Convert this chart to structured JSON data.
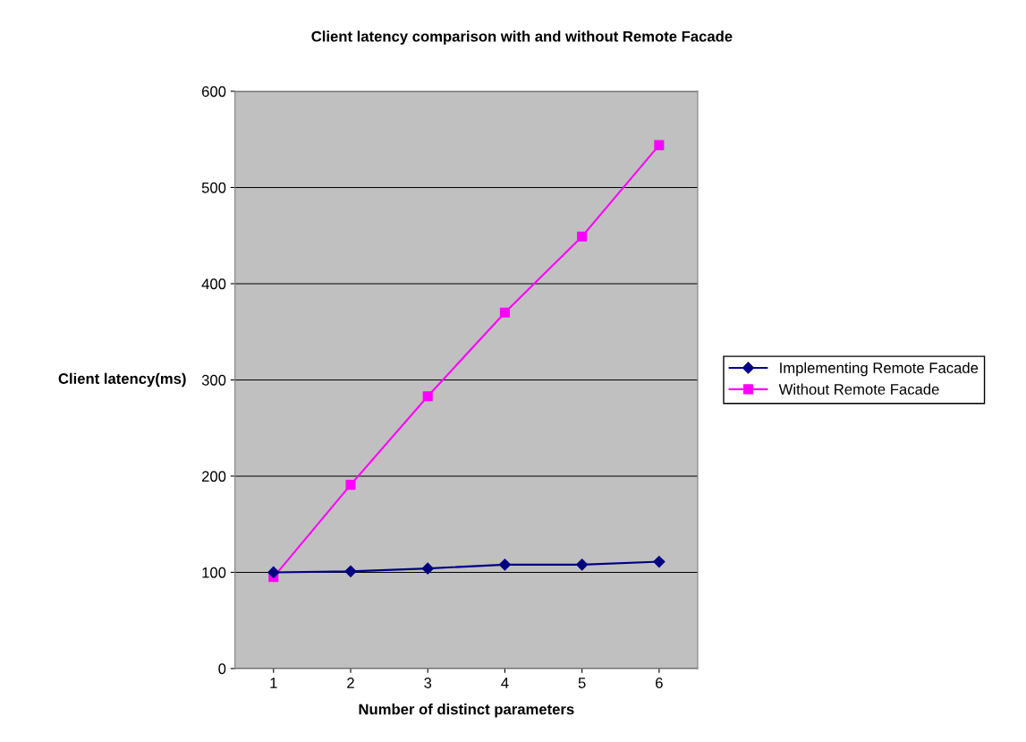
{
  "chart_data": {
    "type": "line",
    "title": "Client latency comparison with and without Remote Facade",
    "xlabel": "Number of distinct parameters",
    "ylabel": "Client latency(ms)",
    "categories": [
      "1",
      "2",
      "3",
      "4",
      "5",
      "6"
    ],
    "series": [
      {
        "name": "Implementing Remote Facade",
        "color": "#000080",
        "marker": "diamond",
        "values": [
          100,
          101,
          104,
          108,
          108,
          111
        ]
      },
      {
        "name": "Without Remote Facade",
        "color": "#ff00ff",
        "marker": "square",
        "values": [
          95,
          191,
          283,
          370,
          449,
          544
        ]
      }
    ],
    "ylim": [
      0,
      600
    ],
    "yticks": [
      0,
      100,
      200,
      300,
      400,
      500,
      600
    ],
    "grid": "y",
    "legend": "right",
    "line_style": "solid"
  }
}
